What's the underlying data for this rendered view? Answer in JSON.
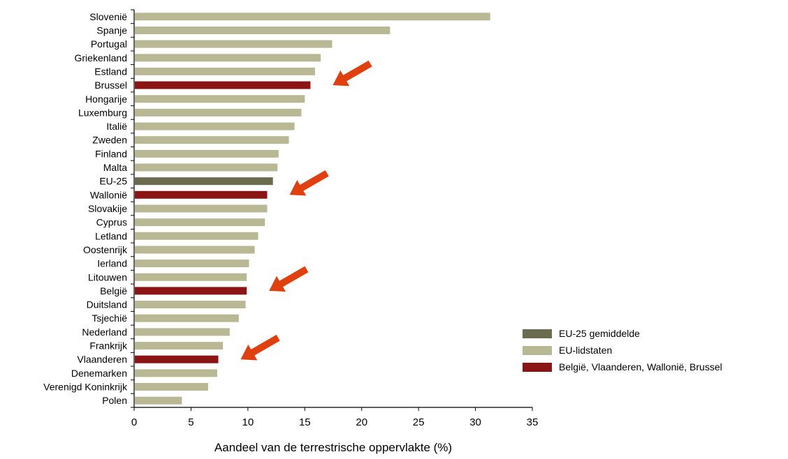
{
  "chart_data": {
    "type": "bar",
    "orientation": "horizontal",
    "categories": [
      "Slovenië",
      "Spanje",
      "Portugal",
      "Griekenland",
      "Estland",
      "Brussel",
      "Hongarije",
      "Luxemburg",
      "Italië",
      "Zweden",
      "Finland",
      "Malta",
      "EU-25",
      "Wallonië",
      "Slovakije",
      "Cyprus",
      "Letland",
      "Oostenrijk",
      "Ierland",
      "Litouwen",
      "België",
      "Duitsland",
      "Tsjechië",
      "Nederland",
      "Frankrijk",
      "Vlaanderen",
      "Denemarken",
      "Verenigd Koninkrijk",
      "Polen"
    ],
    "values": [
      31.3,
      22.5,
      17.4,
      16.4,
      15.9,
      15.5,
      15.0,
      14.7,
      14.1,
      13.6,
      12.7,
      12.6,
      12.2,
      11.7,
      11.7,
      11.5,
      10.9,
      10.6,
      10.1,
      9.9,
      9.9,
      9.8,
      9.2,
      8.4,
      7.8,
      7.4,
      7.3,
      6.5,
      4.2
    ],
    "groups": [
      "member",
      "member",
      "member",
      "member",
      "member",
      "belgium",
      "member",
      "member",
      "member",
      "member",
      "member",
      "member",
      "eu",
      "belgium",
      "member",
      "member",
      "member",
      "member",
      "member",
      "member",
      "belgium",
      "member",
      "member",
      "member",
      "member",
      "belgium",
      "member",
      "member",
      "member"
    ],
    "xlabel": "Aandeel van de terrestrische oppervlakte (%)",
    "xlim": [
      0,
      35
    ],
    "xticks": [
      0,
      5,
      10,
      15,
      20,
      25,
      30,
      35
    ],
    "grid": false,
    "legend_position": "bottom-right",
    "colors": {
      "eu": "#6b6b4f",
      "member": "#b8b894",
      "belgium": "#8b1414",
      "arrow": "#e04010"
    },
    "highlight_arrows": [
      "Brussel",
      "Wallonië",
      "België",
      "Vlaanderen"
    ],
    "legend": [
      {
        "key": "eu",
        "label": "EU-25 gemiddelde"
      },
      {
        "key": "member",
        "label": "EU-lidstaten"
      },
      {
        "key": "belgium",
        "label": "België, Vlaanderen, Wallonië, Brussel"
      }
    ]
  }
}
